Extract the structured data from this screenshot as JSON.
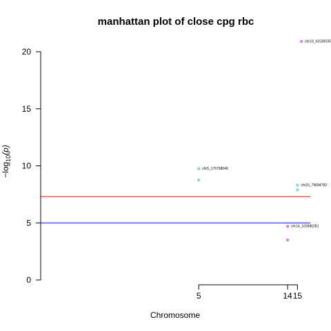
{
  "chart_data": {
    "type": "scatter",
    "title": "manhattan plot of close cpg rbc",
    "xlabel": "Chromosome",
    "ylabel_main": "−log",
    "ylabel_sub": "10",
    "ylabel_arg": "(p)",
    "ylim": [
      0,
      21
    ],
    "yticks": [
      0,
      5,
      10,
      15,
      20
    ],
    "xticks": [
      {
        "label": "5",
        "x": 5
      },
      {
        "label": "14",
        "x": 14
      },
      {
        "label": "15",
        "x": 15
      }
    ],
    "xlim": [
      -11,
      16.3
    ],
    "grid": false,
    "thresholds": [
      {
        "value": 7.3,
        "color": "#ff0000"
      },
      {
        "value": 5.0,
        "color": "#0000ff"
      }
    ],
    "points": [
      {
        "chr": 5,
        "x": 5.0,
        "y": 9.75,
        "color": "#88d6e6",
        "label": "chr5_176798049"
      },
      {
        "chr": 5,
        "x": 5.0,
        "y": 8.75,
        "color": "#88d6e6",
        "label": ""
      },
      {
        "chr": 14,
        "x": 14.0,
        "y": 4.7,
        "color": "#e080e6",
        "label": "chr14_103986281"
      },
      {
        "chr": 14,
        "x": 14.0,
        "y": 3.5,
        "color": "#e080e6",
        "label": ""
      },
      {
        "chr": 15,
        "x": 15.0,
        "y": 8.3,
        "color": "#88d6e6",
        "label": "chr15_79094782"
      },
      {
        "chr": 15,
        "x": 15.0,
        "y": 7.9,
        "color": "#88d6e6",
        "label": ""
      },
      {
        "chr": 19,
        "x": 15.4,
        "y": 20.9,
        "color": "#e080e6",
        "label": "chr19_41536035"
      }
    ]
  }
}
